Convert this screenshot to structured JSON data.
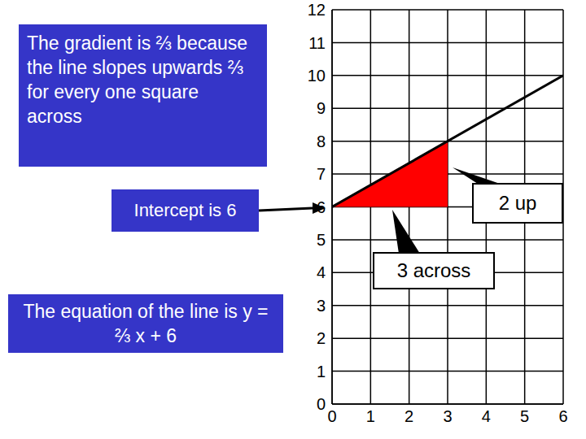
{
  "chart_data": {
    "type": "line",
    "xlim": [
      0,
      6
    ],
    "xticks": [
      0,
      1,
      2,
      3,
      4,
      5,
      6
    ],
    "ylim": [
      0,
      12
    ],
    "yticks": [
      0,
      1,
      2,
      3,
      4,
      5,
      6,
      7,
      8,
      9,
      10,
      11,
      12
    ],
    "grid": true,
    "series": [
      {
        "type": "line",
        "color": "#000000",
        "x": [
          0,
          6
        ],
        "values": [
          6,
          10
        ]
      },
      {
        "type": "area",
        "color": "#ff0000",
        "x": [
          0,
          3
        ],
        "values": [
          6,
          8
        ],
        "base": 6
      }
    ],
    "annotations": [
      {
        "text": "The gradient is ⅔ because the line slopes upwards ⅔ for every one square across"
      },
      {
        "text": "Intercept is 6"
      },
      {
        "text": "The equation of the line is y = ⅔ x + 6"
      },
      {
        "text": "2 up"
      },
      {
        "text": "3 across"
      }
    ]
  }
}
